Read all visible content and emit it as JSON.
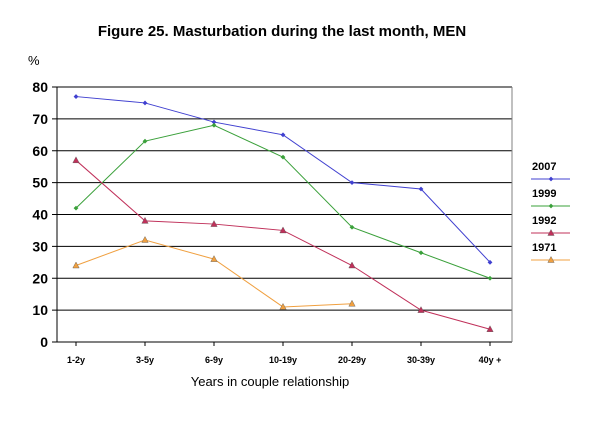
{
  "chart_data": {
    "type": "line",
    "title": "Figure 25. Masturbation during the last month, MEN",
    "ylabel": "%",
    "xlabel": "Years in couple relationship",
    "categories": [
      "1-2y",
      "3-5y",
      "6-9y",
      "10-19y",
      "20-29y",
      "30-39y",
      "40y +"
    ],
    "ylim": [
      0,
      80
    ],
    "yticks": [
      0,
      10,
      20,
      30,
      40,
      50,
      60,
      70,
      80
    ],
    "grid": true,
    "legend": "right",
    "series": [
      {
        "name": "2007",
        "color": "#4040d0",
        "marker": "diamond",
        "values": [
          77,
          75,
          69,
          65,
          50,
          48,
          25
        ]
      },
      {
        "name": "1999",
        "color": "#3aa03a",
        "marker": "diamond",
        "values": [
          42,
          63,
          68,
          58,
          36,
          28,
          20
        ]
      },
      {
        "name": "1992",
        "color": "#c0305a",
        "marker": "triangle",
        "values": [
          57,
          38,
          37,
          35,
          24,
          10,
          4
        ]
      },
      {
        "name": "1971",
        "color": "#f0a040",
        "marker": "triangle",
        "values": [
          24,
          32,
          26,
          11,
          12,
          null,
          null
        ]
      }
    ]
  }
}
